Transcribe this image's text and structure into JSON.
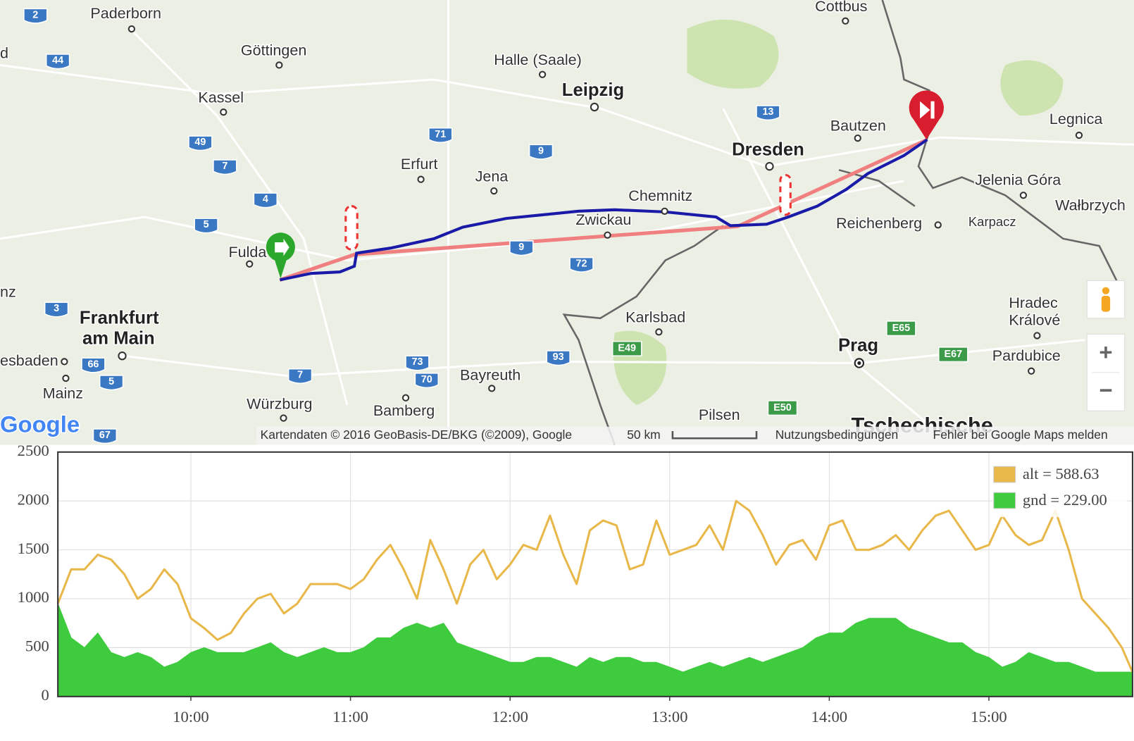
{
  "map": {
    "cities": [
      "Paderborn",
      "Göttingen",
      "Kassel",
      "Halle (Saale)",
      "Leipzig",
      "Cottbus",
      "Erfurt",
      "Jena",
      "Dresden",
      "Bautzen",
      "Legnica",
      "Chemnitz",
      "Zwickau",
      "Jelenia Góra",
      "Wałbrzych",
      "Reichenberg",
      "Karpacz",
      "Fulda",
      "Frankfurt",
      "am Main",
      "Karlsbad",
      "Hradec",
      "Králové",
      "Prag",
      "Pardubice",
      "esbaden",
      "Mainz",
      "Würzburg",
      "Bamberg",
      "Bayreuth",
      "Pilsen",
      "Tschechische",
      "d",
      "nz"
    ],
    "motorways": [
      "2",
      "44",
      "49",
      "7",
      "4",
      "5",
      "3",
      "66",
      "5",
      "7",
      "67",
      "71",
      "9",
      "9",
      "72",
      "73",
      "70",
      "93",
      "13"
    ],
    "euroroutes": [
      "E49",
      "E65",
      "E67",
      "E50"
    ],
    "logo": "Google",
    "attribution": "Kartendaten © 2016 GeoBasis-DE/BKG (©2009), Google",
    "scale": "50 km",
    "terms": "Nutzungsbedingungen",
    "report": "Fehler bei Google Maps melden",
    "zoom_in": "+",
    "zoom_out": "−"
  },
  "chart_data": {
    "type": "line",
    "x": [
      "09:10",
      "09:15",
      "09:20",
      "09:25",
      "09:30",
      "09:35",
      "09:40",
      "09:45",
      "09:50",
      "09:55",
      "10:00",
      "10:05",
      "10:10",
      "10:15",
      "10:20",
      "10:25",
      "10:30",
      "10:35",
      "10:40",
      "10:45",
      "10:50",
      "10:55",
      "11:00",
      "11:05",
      "11:10",
      "11:15",
      "11:20",
      "11:25",
      "11:30",
      "11:35",
      "11:40",
      "11:45",
      "11:50",
      "11:55",
      "12:00",
      "12:05",
      "12:10",
      "12:15",
      "12:20",
      "12:25",
      "12:30",
      "12:35",
      "12:40",
      "12:45",
      "12:50",
      "12:55",
      "13:00",
      "13:05",
      "13:10",
      "13:15",
      "13:20",
      "13:25",
      "13:30",
      "13:35",
      "13:40",
      "13:45",
      "13:50",
      "13:55",
      "14:00",
      "14:05",
      "14:10",
      "14:15",
      "14:20",
      "14:25",
      "14:30",
      "14:35",
      "14:40",
      "14:45",
      "14:50",
      "14:55",
      "15:00",
      "15:05",
      "15:10",
      "15:15",
      "15:20",
      "15:25",
      "15:30",
      "15:35",
      "15:40",
      "15:45",
      "15:50",
      "15:54"
    ],
    "series": [
      {
        "name": "alt = 588.63",
        "color": "#e8b84a",
        "fill": false,
        "values": [
          950,
          1300,
          1300,
          1450,
          1400,
          1250,
          1000,
          1100,
          1300,
          1150,
          800,
          700,
          580,
          650,
          850,
          1000,
          1050,
          850,
          950,
          1150,
          1150,
          1150,
          1100,
          1200,
          1400,
          1550,
          1300,
          1000,
          1600,
          1300,
          950,
          1350,
          1500,
          1200,
          1350,
          1550,
          1500,
          1850,
          1450,
          1150,
          1700,
          1800,
          1750,
          1300,
          1350,
          1800,
          1450,
          1500,
          1550,
          1750,
          1500,
          2000,
          1900,
          1650,
          1350,
          1550,
          1600,
          1400,
          1750,
          1800,
          1500,
          1500,
          1550,
          1650,
          1500,
          1700,
          1850,
          1900,
          1700,
          1500,
          1550,
          1850,
          1650,
          1550,
          1600,
          1900,
          1500,
          1000,
          850,
          700,
          500,
          250
        ]
      },
      {
        "name": "gnd = 229.00",
        "color": "#3ecb3e",
        "fill": true,
        "values": [
          950,
          600,
          500,
          650,
          450,
          400,
          450,
          400,
          300,
          350,
          450,
          500,
          450,
          450,
          450,
          500,
          550,
          450,
          400,
          450,
          500,
          450,
          450,
          500,
          600,
          600,
          700,
          750,
          700,
          750,
          550,
          500,
          450,
          400,
          350,
          350,
          400,
          400,
          350,
          300,
          400,
          350,
          400,
          400,
          350,
          350,
          300,
          250,
          300,
          350,
          300,
          350,
          400,
          350,
          400,
          450,
          500,
          600,
          650,
          650,
          750,
          800,
          800,
          800,
          700,
          650,
          600,
          550,
          550,
          450,
          400,
          300,
          350,
          450,
          400,
          350,
          350,
          300,
          250,
          250,
          250,
          250
        ]
      }
    ],
    "xlim": [
      "09:10",
      "15:54"
    ],
    "xticks": [
      "10:00",
      "11:00",
      "12:00",
      "13:00",
      "14:00",
      "15:00"
    ],
    "ylim": [
      0,
      2500
    ],
    "yticks": [
      0,
      500,
      1000,
      1500,
      2000,
      2500
    ],
    "grid": true,
    "legend": "upper right"
  }
}
